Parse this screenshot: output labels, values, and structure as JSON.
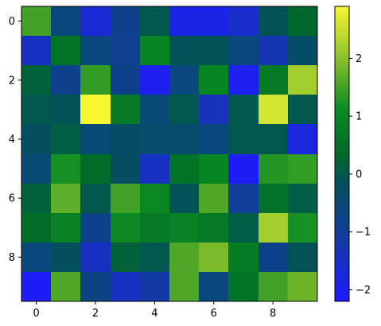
{
  "chart_data": {
    "type": "heatmap",
    "title": "",
    "xlabel": "",
    "ylabel": "",
    "xlim": [
      -0.5,
      9.5
    ],
    "ylim": [
      9.5,
      -0.5
    ],
    "x_ticks": [
      0,
      2,
      4,
      6,
      8
    ],
    "x_tick_labels": [
      "0",
      "2",
      "4",
      "6",
      "8"
    ],
    "y_ticks": [
      0,
      2,
      4,
      6,
      8
    ],
    "y_tick_labels": [
      "0",
      "2",
      "4",
      "6",
      "8"
    ],
    "colorbar": {
      "vmin": -2.2,
      "vmax": 2.9,
      "ticks": [
        -2,
        -1,
        0,
        1,
        2
      ],
      "tick_labels": [
        "−2",
        "−1",
        "0",
        "1",
        "2"
      ]
    },
    "colormap": [
      [
        0.0,
        "#1f1aff"
      ],
      [
        0.2,
        "#133aa6"
      ],
      [
        0.4,
        "#03505c"
      ],
      [
        0.5,
        "#006a2a"
      ],
      [
        0.65,
        "#0a8a22"
      ],
      [
        0.85,
        "#9cc92e"
      ],
      [
        1.0,
        "#f7f731"
      ]
    ],
    "values": [
      [
        1.5,
        -0.6,
        -1.7,
        -0.8,
        0.0,
        -1.9,
        -1.9,
        -1.6,
        -0.1,
        0.3
      ],
      [
        -1.5,
        0.6,
        -0.6,
        -0.9,
        1.0,
        -0.1,
        -0.1,
        -0.6,
        -1.3,
        -0.3
      ],
      [
        0.2,
        -0.8,
        1.4,
        -0.8,
        -2.0,
        -0.6,
        1.0,
        -2.0,
        0.7,
        2.2
      ],
      [
        0.0,
        -0.1,
        2.9,
        0.7,
        -0.5,
        0.0,
        -1.4,
        0.0,
        2.6,
        0.0
      ],
      [
        -0.2,
        0.1,
        -0.5,
        -0.3,
        -0.4,
        -0.4,
        -0.6,
        0.0,
        0.0,
        -1.8
      ],
      [
        -0.5,
        1.2,
        0.4,
        -0.2,
        -1.5,
        0.6,
        1.0,
        -2.1,
        1.3,
        1.4
      ],
      [
        0.2,
        1.7,
        0.0,
        1.5,
        1.1,
        -0.1,
        1.6,
        -1.0,
        0.6,
        0.1
      ],
      [
        0.4,
        0.9,
        -0.8,
        1.1,
        0.7,
        0.9,
        0.7,
        0.1,
        2.2,
        1.2
      ],
      [
        -0.6,
        -0.2,
        -1.5,
        0.2,
        0.0,
        1.6,
        1.9,
        0.8,
        -0.8,
        -0.1
      ],
      [
        -2.1,
        1.6,
        -0.7,
        -1.5,
        -1.2,
        1.6,
        -0.6,
        0.6,
        1.5,
        1.8
      ]
    ]
  }
}
